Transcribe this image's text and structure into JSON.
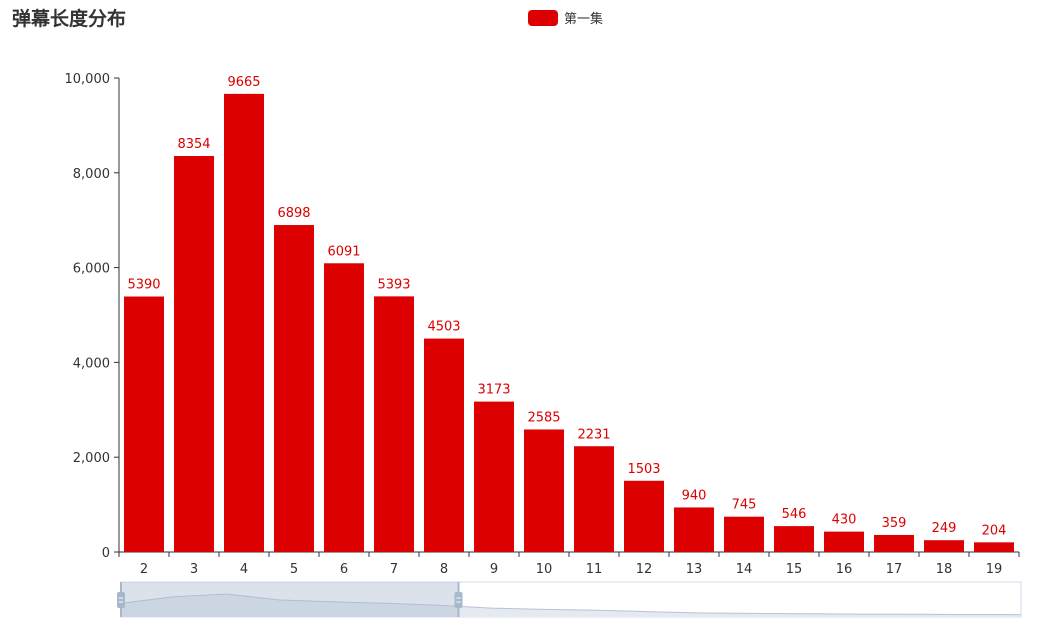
{
  "title": "弹幕长度分布",
  "legend": {
    "label": "第一集",
    "color": "#dd0000"
  },
  "chart_data": {
    "type": "bar",
    "title": "弹幕长度分布",
    "xlabel": "",
    "ylabel": "",
    "categories": [
      "2",
      "3",
      "4",
      "5",
      "6",
      "7",
      "8",
      "9",
      "10",
      "11",
      "12",
      "13",
      "14",
      "15",
      "16",
      "17",
      "18",
      "19"
    ],
    "series": [
      {
        "name": "第一集",
        "values": [
          5390,
          8354,
          9665,
          6898,
          6091,
          5393,
          4503,
          3173,
          2585,
          2231,
          1503,
          940,
          745,
          546,
          430,
          359,
          249,
          204
        ]
      }
    ],
    "ylim": [
      0,
      10000
    ],
    "yticks": [
      "0",
      "2,000",
      "4,000",
      "6,000",
      "8,000",
      "10,000"
    ],
    "bar_color": "#dd0000",
    "label_color": "#dd0000",
    "legend_position": "top-center",
    "grid": false,
    "datazoom": {
      "start_fraction": 0,
      "end_fraction": 0.375
    }
  }
}
